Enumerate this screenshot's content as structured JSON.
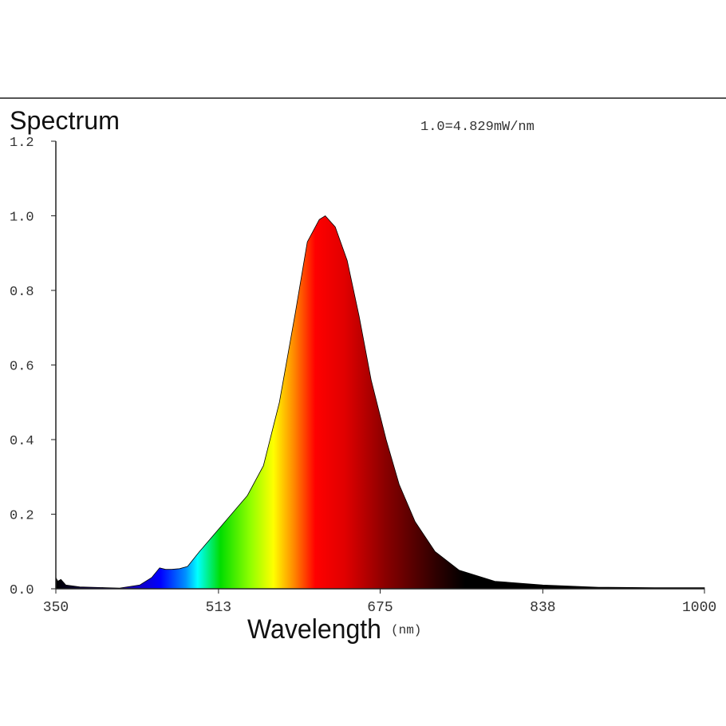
{
  "chart_data": {
    "type": "area",
    "title": "Spectrum",
    "annotation": "1.0=4.829mW/nm",
    "xlabel": "Wavelength",
    "xlabel_unit": "(nm)",
    "ylabel": "",
    "xlim": [
      350,
      1000
    ],
    "ylim": [
      0,
      1.2
    ],
    "x_ticks": [
      "350",
      "513",
      "675",
      "838",
      "1000"
    ],
    "y_ticks": [
      "0.0",
      "0.2",
      "0.4",
      "0.6",
      "0.8",
      "1.0",
      "1.2"
    ],
    "grid": false,
    "fill": "visible-spectrum color gradient",
    "series": [
      {
        "x": [
          350,
          352,
          355,
          360,
          374,
          400,
          414,
          434,
          446,
          454,
          460,
          466,
          474,
          482,
          494,
          510,
          526,
          542,
          558,
          574,
          590,
          602,
          614,
          620,
          630,
          642,
          654,
          666,
          681,
          694,
          710,
          730,
          754,
          790,
          838,
          894,
          950,
          1000
        ],
        "y": [
          0.03,
          0.02,
          0.025,
          0.01,
          0.005,
          0.003,
          0.002,
          0.01,
          0.03,
          0.056,
          0.052,
          0.052,
          0.054,
          0.06,
          0.1,
          0.15,
          0.2,
          0.25,
          0.33,
          0.5,
          0.74,
          0.93,
          0.99,
          1.0,
          0.97,
          0.88,
          0.73,
          0.56,
          0.4,
          0.28,
          0.18,
          0.1,
          0.05,
          0.02,
          0.01,
          0.004,
          0.003,
          0.003
        ]
      }
    ],
    "gradient_stops": [
      {
        "nm": 350,
        "color": "#000000"
      },
      {
        "nm": 420,
        "color": "#1a00a0"
      },
      {
        "nm": 455,
        "color": "#0000ff"
      },
      {
        "nm": 480,
        "color": "#0090ff"
      },
      {
        "nm": 492,
        "color": "#00ffff"
      },
      {
        "nm": 515,
        "color": "#00dd00"
      },
      {
        "nm": 545,
        "color": "#90ff00"
      },
      {
        "nm": 568,
        "color": "#ffff00"
      },
      {
        "nm": 588,
        "color": "#ff8c00"
      },
      {
        "nm": 610,
        "color": "#ff0000"
      },
      {
        "nm": 640,
        "color": "#e00000"
      },
      {
        "nm": 680,
        "color": "#8a0000"
      },
      {
        "nm": 730,
        "color": "#300000"
      },
      {
        "nm": 760,
        "color": "#000000"
      },
      {
        "nm": 1000,
        "color": "#000000"
      }
    ]
  }
}
